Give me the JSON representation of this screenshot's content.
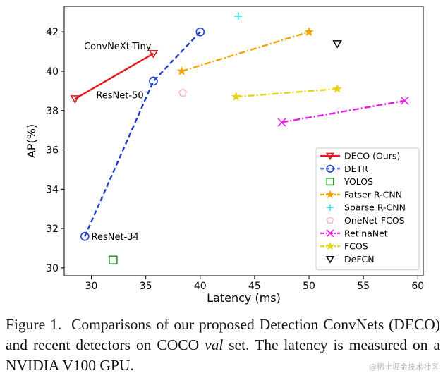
{
  "chart_data": {
    "type": "scatter",
    "title": "",
    "xlabel": "Latency (ms)",
    "ylabel": "AP(%)",
    "xlim": [
      27.5,
      60.5
    ],
    "ylim": [
      29.6,
      43.3
    ],
    "xticks": [
      30,
      35,
      40,
      45,
      50,
      55,
      60
    ],
    "yticks": [
      30,
      32,
      34,
      36,
      38,
      40,
      42
    ],
    "grid": false,
    "legend_position": "lower-right",
    "series": [
      {
        "name": "DECO (Ours)",
        "color": "#e41a1c",
        "marker": "triangle-down",
        "line": "solid",
        "points": [
          [
            28.5,
            38.6
          ],
          [
            35.7,
            40.9
          ]
        ]
      },
      {
        "name": "DETR",
        "color": "#1f3fd0",
        "marker": "circle",
        "line": "dashed",
        "points": [
          [
            29.4,
            31.6
          ],
          [
            35.7,
            39.5
          ],
          [
            40.0,
            42.0
          ]
        ]
      },
      {
        "name": "YOLOS",
        "color": "#2ca02c",
        "marker": "square",
        "line": "none",
        "points": [
          [
            32.0,
            30.4
          ]
        ]
      },
      {
        "name": "Fatser R-CNN",
        "color": "#f0a500",
        "marker": "star",
        "line": "dashdot",
        "points": [
          [
            38.3,
            40.0
          ],
          [
            50.0,
            42.0
          ]
        ]
      },
      {
        "name": "Sparse R-CNN",
        "color": "#22e5e5",
        "marker": "plus",
        "line": "none",
        "points": [
          [
            43.5,
            42.8
          ]
        ]
      },
      {
        "name": "OneNet-FCOS",
        "color": "#f4b6c2",
        "marker": "pentagon",
        "line": "none",
        "points": [
          [
            38.4,
            38.9
          ]
        ]
      },
      {
        "name": "RetinaNet",
        "color": "#e61ee6",
        "marker": "x",
        "line": "dashdot",
        "points": [
          [
            47.5,
            37.4
          ],
          [
            58.8,
            38.5
          ]
        ]
      },
      {
        "name": "FCOS",
        "color": "#e8d21a",
        "marker": "star",
        "line": "dashdot",
        "points": [
          [
            43.3,
            38.7
          ],
          [
            52.6,
            39.1
          ]
        ]
      },
      {
        "name": "DeFCN",
        "color": "#111111",
        "marker": "triangle-down",
        "line": "none",
        "points": [
          [
            52.6,
            41.4
          ]
        ]
      }
    ],
    "annotations": [
      {
        "text": "ConvNeXt-Tiny",
        "x": 35.5,
        "y": 41.3,
        "anchor": "end"
      },
      {
        "text": "ResNet-50",
        "x": 34.8,
        "y": 38.8,
        "anchor": "end"
      },
      {
        "text": "ResNet-34",
        "x": 30.0,
        "y": 31.6,
        "anchor": "start"
      }
    ]
  },
  "caption": {
    "label": "Figure 1.",
    "text_before": "Comparisons of our proposed Detection ConvNets (DECO) and recent detectors on COCO ",
    "italic": "val",
    "text_after": " set. The latency is measured on a NVIDIA V100 GPU."
  },
  "watermark": "@稀土掘金技术社区"
}
